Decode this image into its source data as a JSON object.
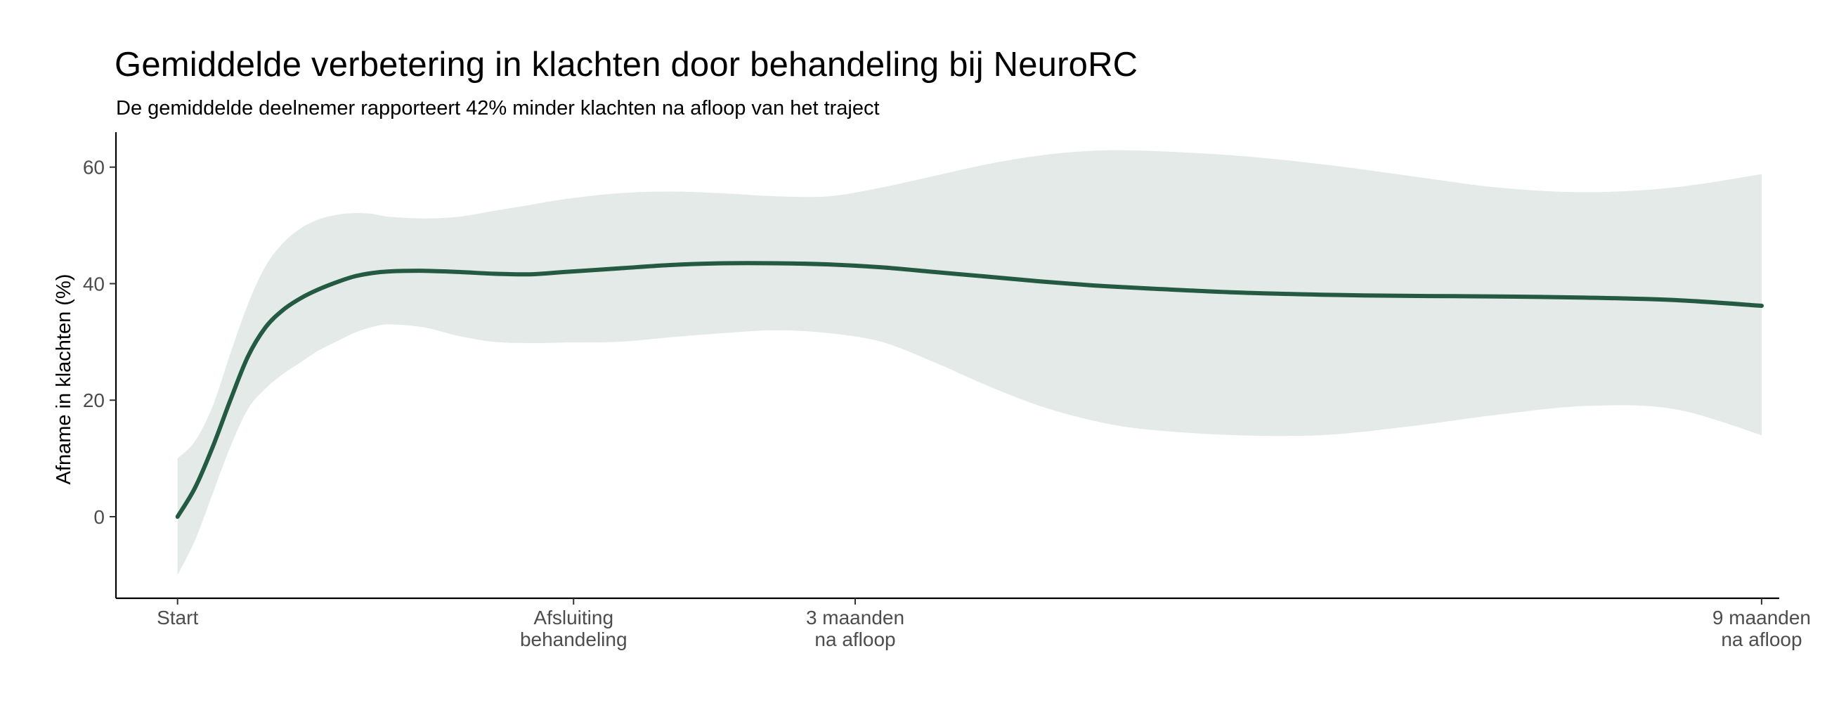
{
  "chart_data": {
    "type": "line",
    "title": "Gemiddelde verbetering in klachten door behandeling bij NeuroRC",
    "subtitle": "De gemiddelde deelnemer rapporteert 42% minder klachten na afloop van het traject",
    "xlabel": "",
    "ylabel": "Afname in klachten (%)",
    "xlim": [
      -0.35,
      9.1
    ],
    "ylim": [
      -14,
      66
    ],
    "y_ticks": [
      0,
      20,
      40,
      60
    ],
    "x_ticks": [
      {
        "x": 0,
        "lines": [
          "Start"
        ]
      },
      {
        "x": 2.25,
        "lines": [
          "Afsluiting",
          "behandeling"
        ]
      },
      {
        "x": 3.85,
        "lines": [
          "3 maanden",
          "na afloop"
        ]
      },
      {
        "x": 9,
        "lines": [
          "9 maanden",
          "na afloop"
        ]
      }
    ],
    "grid": false,
    "legend": "none",
    "series": [
      {
        "x": [
          0,
          0.1,
          0.2,
          0.3,
          0.4,
          0.5,
          0.6,
          0.7,
          0.8,
          0.9,
          1.0,
          1.1,
          1.2,
          1.4,
          1.6,
          1.8,
          2.0,
          2.2,
          2.5,
          2.8,
          3.1,
          3.4,
          3.7,
          4.0,
          4.3,
          4.6,
          4.9,
          5.2,
          5.5,
          6.0,
          6.5,
          7.0,
          7.5,
          8.0,
          8.5,
          9.0
        ],
        "mean": [
          0,
          5,
          12,
          20,
          27.5,
          32.5,
          35.5,
          37.5,
          39,
          40.2,
          41.2,
          41.8,
          42.1,
          42.2,
          42,
          41.7,
          41.6,
          42,
          42.6,
          43.2,
          43.5,
          43.5,
          43.3,
          42.8,
          42,
          41.2,
          40.4,
          39.7,
          39.2,
          38.5,
          38.1,
          37.9,
          37.8,
          37.6,
          37.2,
          36.2
        ],
        "lower": [
          -10,
          -4,
          4,
          12,
          18.5,
          22,
          24.5,
          26.5,
          28.5,
          30,
          31.5,
          32.5,
          33,
          32.5,
          31,
          30,
          29.8,
          29.9,
          30,
          30.8,
          31.5,
          32,
          31.5,
          30,
          26.5,
          22.5,
          19,
          16.5,
          15,
          14,
          14,
          15.5,
          17.5,
          19,
          18.5,
          14
        ],
        "upper": [
          10,
          13,
          19,
          28,
          36.5,
          43,
          47,
          49.5,
          51,
          51.8,
          52.1,
          52,
          51.5,
          51.2,
          51.5,
          52.5,
          53.5,
          54.5,
          55.5,
          55.8,
          55.5,
          55,
          55,
          56.5,
          58.5,
          60.5,
          62,
          62.8,
          62.8,
          62,
          60.5,
          58.5,
          56.5,
          55.7,
          56.5,
          58.8
        ]
      }
    ],
    "colors": {
      "line": "#245a41",
      "band": "#e3eae7",
      "axis": "#000000",
      "tick_text": "#4d4d4d"
    }
  }
}
